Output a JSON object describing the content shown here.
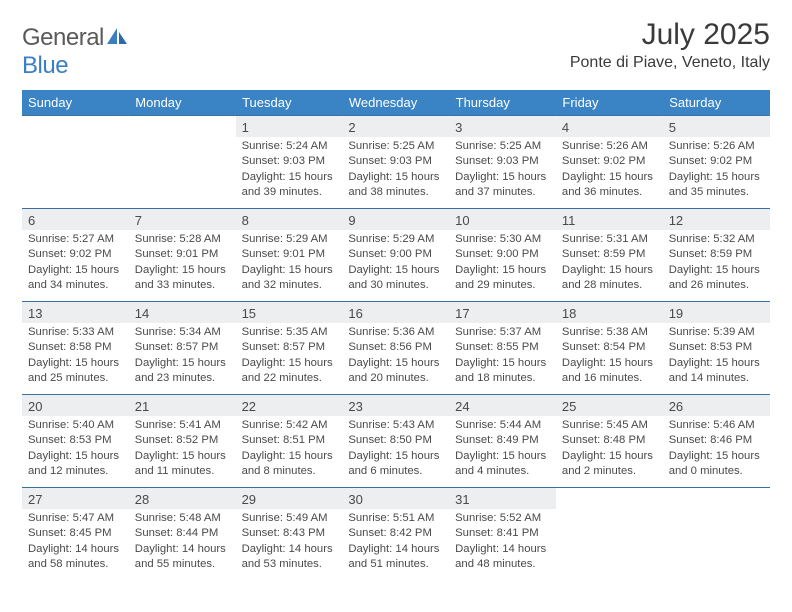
{
  "logo": {
    "general": "General",
    "blue": "Blue"
  },
  "title": "July 2025",
  "location": "Ponte di Piave, Veneto, Italy",
  "day_headers": [
    "Sunday",
    "Monday",
    "Tuesday",
    "Wednesday",
    "Thursday",
    "Friday",
    "Saturday"
  ],
  "colors": {
    "header_bg": "#3a84c5",
    "daynum_bg": "#eceeef",
    "border": "#3a6fa0",
    "text": "#3a3a3a"
  },
  "weeks": [
    [
      null,
      null,
      {
        "n": "1",
        "sr": "Sunrise: 5:24 AM",
        "ss": "Sunset: 9:03 PM",
        "dl": "Daylight: 15 hours and 39 minutes."
      },
      {
        "n": "2",
        "sr": "Sunrise: 5:25 AM",
        "ss": "Sunset: 9:03 PM",
        "dl": "Daylight: 15 hours and 38 minutes."
      },
      {
        "n": "3",
        "sr": "Sunrise: 5:25 AM",
        "ss": "Sunset: 9:03 PM",
        "dl": "Daylight: 15 hours and 37 minutes."
      },
      {
        "n": "4",
        "sr": "Sunrise: 5:26 AM",
        "ss": "Sunset: 9:02 PM",
        "dl": "Daylight: 15 hours and 36 minutes."
      },
      {
        "n": "5",
        "sr": "Sunrise: 5:26 AM",
        "ss": "Sunset: 9:02 PM",
        "dl": "Daylight: 15 hours and 35 minutes."
      }
    ],
    [
      {
        "n": "6",
        "sr": "Sunrise: 5:27 AM",
        "ss": "Sunset: 9:02 PM",
        "dl": "Daylight: 15 hours and 34 minutes."
      },
      {
        "n": "7",
        "sr": "Sunrise: 5:28 AM",
        "ss": "Sunset: 9:01 PM",
        "dl": "Daylight: 15 hours and 33 minutes."
      },
      {
        "n": "8",
        "sr": "Sunrise: 5:29 AM",
        "ss": "Sunset: 9:01 PM",
        "dl": "Daylight: 15 hours and 32 minutes."
      },
      {
        "n": "9",
        "sr": "Sunrise: 5:29 AM",
        "ss": "Sunset: 9:00 PM",
        "dl": "Daylight: 15 hours and 30 minutes."
      },
      {
        "n": "10",
        "sr": "Sunrise: 5:30 AM",
        "ss": "Sunset: 9:00 PM",
        "dl": "Daylight: 15 hours and 29 minutes."
      },
      {
        "n": "11",
        "sr": "Sunrise: 5:31 AM",
        "ss": "Sunset: 8:59 PM",
        "dl": "Daylight: 15 hours and 28 minutes."
      },
      {
        "n": "12",
        "sr": "Sunrise: 5:32 AM",
        "ss": "Sunset: 8:59 PM",
        "dl": "Daylight: 15 hours and 26 minutes."
      }
    ],
    [
      {
        "n": "13",
        "sr": "Sunrise: 5:33 AM",
        "ss": "Sunset: 8:58 PM",
        "dl": "Daylight: 15 hours and 25 minutes."
      },
      {
        "n": "14",
        "sr": "Sunrise: 5:34 AM",
        "ss": "Sunset: 8:57 PM",
        "dl": "Daylight: 15 hours and 23 minutes."
      },
      {
        "n": "15",
        "sr": "Sunrise: 5:35 AM",
        "ss": "Sunset: 8:57 PM",
        "dl": "Daylight: 15 hours and 22 minutes."
      },
      {
        "n": "16",
        "sr": "Sunrise: 5:36 AM",
        "ss": "Sunset: 8:56 PM",
        "dl": "Daylight: 15 hours and 20 minutes."
      },
      {
        "n": "17",
        "sr": "Sunrise: 5:37 AM",
        "ss": "Sunset: 8:55 PM",
        "dl": "Daylight: 15 hours and 18 minutes."
      },
      {
        "n": "18",
        "sr": "Sunrise: 5:38 AM",
        "ss": "Sunset: 8:54 PM",
        "dl": "Daylight: 15 hours and 16 minutes."
      },
      {
        "n": "19",
        "sr": "Sunrise: 5:39 AM",
        "ss": "Sunset: 8:53 PM",
        "dl": "Daylight: 15 hours and 14 minutes."
      }
    ],
    [
      {
        "n": "20",
        "sr": "Sunrise: 5:40 AM",
        "ss": "Sunset: 8:53 PM",
        "dl": "Daylight: 15 hours and 12 minutes."
      },
      {
        "n": "21",
        "sr": "Sunrise: 5:41 AM",
        "ss": "Sunset: 8:52 PM",
        "dl": "Daylight: 15 hours and 11 minutes."
      },
      {
        "n": "22",
        "sr": "Sunrise: 5:42 AM",
        "ss": "Sunset: 8:51 PM",
        "dl": "Daylight: 15 hours and 8 minutes."
      },
      {
        "n": "23",
        "sr": "Sunrise: 5:43 AM",
        "ss": "Sunset: 8:50 PM",
        "dl": "Daylight: 15 hours and 6 minutes."
      },
      {
        "n": "24",
        "sr": "Sunrise: 5:44 AM",
        "ss": "Sunset: 8:49 PM",
        "dl": "Daylight: 15 hours and 4 minutes."
      },
      {
        "n": "25",
        "sr": "Sunrise: 5:45 AM",
        "ss": "Sunset: 8:48 PM",
        "dl": "Daylight: 15 hours and 2 minutes."
      },
      {
        "n": "26",
        "sr": "Sunrise: 5:46 AM",
        "ss": "Sunset: 8:46 PM",
        "dl": "Daylight: 15 hours and 0 minutes."
      }
    ],
    [
      {
        "n": "27",
        "sr": "Sunrise: 5:47 AM",
        "ss": "Sunset: 8:45 PM",
        "dl": "Daylight: 14 hours and 58 minutes."
      },
      {
        "n": "28",
        "sr": "Sunrise: 5:48 AM",
        "ss": "Sunset: 8:44 PM",
        "dl": "Daylight: 14 hours and 55 minutes."
      },
      {
        "n": "29",
        "sr": "Sunrise: 5:49 AM",
        "ss": "Sunset: 8:43 PM",
        "dl": "Daylight: 14 hours and 53 minutes."
      },
      {
        "n": "30",
        "sr": "Sunrise: 5:51 AM",
        "ss": "Sunset: 8:42 PM",
        "dl": "Daylight: 14 hours and 51 minutes."
      },
      {
        "n": "31",
        "sr": "Sunrise: 5:52 AM",
        "ss": "Sunset: 8:41 PM",
        "dl": "Daylight: 14 hours and 48 minutes."
      },
      null,
      null
    ]
  ]
}
